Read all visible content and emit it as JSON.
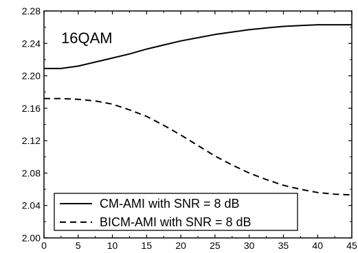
{
  "chart_data": {
    "type": "line",
    "title": "",
    "xlabel": "",
    "ylabel": "",
    "annotation": "16QAM",
    "xlim": [
      0,
      45
    ],
    "ylim": [
      2.0,
      2.28
    ],
    "x_ticks": [
      "0",
      "5",
      "10",
      "15",
      "20",
      "25",
      "30",
      "35",
      "40",
      "45"
    ],
    "y_ticks": [
      "2.00",
      "2.04",
      "2.08",
      "2.12",
      "2.16",
      "2.20",
      "2.24",
      "2.28"
    ],
    "grid": false,
    "legend_position": "bottom-left",
    "series": [
      {
        "name": "CM-AMI with SNR = 8 dB",
        "style": "solid",
        "color": "#000000",
        "x": [
          0,
          2.5,
          5,
          7.5,
          10,
          12.5,
          15,
          17.5,
          20,
          22.5,
          25,
          27.5,
          30,
          32.5,
          35,
          37.5,
          40,
          42.5,
          45
        ],
        "y": [
          2.209,
          2.209,
          2.212,
          2.217,
          2.222,
          2.227,
          2.233,
          2.238,
          2.243,
          2.247,
          2.251,
          2.254,
          2.257,
          2.259,
          2.261,
          2.262,
          2.263,
          2.263,
          2.263
        ]
      },
      {
        "name": "BICM-AMI with SNR = 8 dB",
        "style": "dashed",
        "color": "#000000",
        "x": [
          0,
          2.5,
          5,
          7.5,
          10,
          12.5,
          15,
          17.5,
          20,
          22.5,
          25,
          27.5,
          30,
          32.5,
          35,
          37.5,
          40,
          42.5,
          45
        ],
        "y": [
          2.172,
          2.172,
          2.171,
          2.169,
          2.165,
          2.158,
          2.15,
          2.139,
          2.127,
          2.114,
          2.101,
          2.09,
          2.08,
          2.072,
          2.065,
          2.06,
          2.056,
          2.054,
          2.053
        ]
      }
    ]
  }
}
